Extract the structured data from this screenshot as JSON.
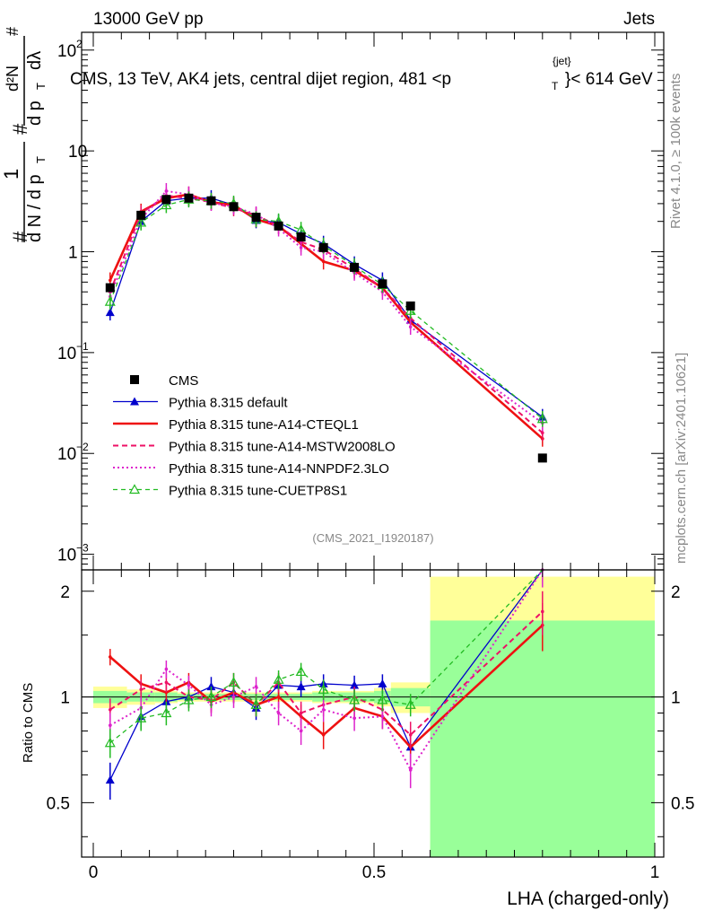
{
  "header": {
    "left": "13000 GeV pp",
    "right": "Jets"
  },
  "plot_title": "CMS, 13 TeV, AK4 jets, central dijet region, 481 <p",
  "plot_title_sup": "{jet}",
  "plot_title_sub": "T",
  "plot_title_tail": "}< 614 GeV",
  "side_labels": {
    "rivet": "Rivet 4.1.0, ≥ 100k events",
    "mcplots": "mcplots.cern.ch [arXiv:2401.10621]"
  },
  "analysis_id": "(CMS_2021_I1920187)",
  "main_ylabel": {
    "hash1": "#",
    "one": "1",
    "dN": "d N / d p",
    "T1": "T",
    "hash2": "#",
    "d2N": "d²N",
    "hash3": "#",
    "dpT": "d p",
    "T2": "T",
    "dlam": "dλ"
  },
  "yticks_main": [
    {
      "v": 0.001,
      "base": "10",
      "exp": "−3"
    },
    {
      "v": 0.01,
      "base": "10",
      "exp": "−2"
    },
    {
      "v": 0.1,
      "base": "10",
      "exp": "−1"
    },
    {
      "v": 1,
      "base": "1",
      "exp": ""
    },
    {
      "v": 10,
      "base": "10",
      "exp": ""
    },
    {
      "v": 100,
      "base": "10",
      "exp": "2"
    }
  ],
  "yticks_ratio": [
    "0.5",
    "1",
    "2"
  ],
  "xticks": [
    "0",
    "0.5",
    "1"
  ],
  "ratio_ylabel": "Ratio to CMS",
  "xlabel": "LHA (charged-only)",
  "legend": [
    {
      "label": "CMS",
      "color": "#000000",
      "style": "data"
    },
    {
      "label": "Pythia 8.315 default",
      "color": "#0000cc",
      "style": "solid-tri"
    },
    {
      "label": "Pythia 8.315 tune-A14-CTEQL1",
      "color": "#ee1111",
      "style": "solid-thick"
    },
    {
      "label": "Pythia 8.315 tune-A14-MSTW2008LO",
      "color": "#ee1166",
      "style": "dashed"
    },
    {
      "label": "Pythia 8.315 tune-A14-NNPDF2.3LO",
      "color": "#dd22cc",
      "style": "dotted"
    },
    {
      "label": "Pythia 8.315 tune-CUETP8S1",
      "color": "#22bb22",
      "style": "dashed-tri"
    }
  ],
  "chart_data": {
    "type": "line",
    "title": "CMS, 13 TeV, AK4 jets, central dijet region, 481 < pT{jet} < 614 GeV",
    "xlabel": "LHA (charged-only)",
    "ylabel": "1/N dN/dλ",
    "xlim": [
      0,
      1
    ],
    "ylim": [
      0.0007,
      150
    ],
    "yscale": "log",
    "ratio_ylim": [
      0.35,
      2.3
    ],
    "ratio_ylabel": "Ratio to CMS",
    "x": [
      0.03,
      0.085,
      0.13,
      0.17,
      0.21,
      0.25,
      0.29,
      0.33,
      0.37,
      0.41,
      0.465,
      0.515,
      0.565,
      0.8
    ],
    "bins": [
      [
        0.0,
        0.06
      ],
      [
        0.06,
        0.11
      ],
      [
        0.11,
        0.15
      ],
      [
        0.15,
        0.19
      ],
      [
        0.19,
        0.23
      ],
      [
        0.23,
        0.27
      ],
      [
        0.27,
        0.31
      ],
      [
        0.31,
        0.35
      ],
      [
        0.35,
        0.39
      ],
      [
        0.39,
        0.43
      ],
      [
        0.43,
        0.5
      ],
      [
        0.5,
        0.53
      ],
      [
        0.53,
        0.6
      ],
      [
        0.6,
        1.0
      ]
    ],
    "data": {
      "name": "CMS",
      "values": [
        0.44,
        2.3,
        3.3,
        3.4,
        3.2,
        2.8,
        2.2,
        1.8,
        1.4,
        1.1,
        0.7,
        0.48,
        0.29,
        0.009
      ],
      "unc_green": [
        0.04,
        0.03,
        0.03,
        0.02,
        0.02,
        0.02,
        0.02,
        0.02,
        0.02,
        0.03,
        0.03,
        0.04,
        0.06,
        0.65
      ],
      "unc_yellow": [
        0.07,
        0.05,
        0.04,
        0.03,
        0.03,
        0.03,
        0.03,
        0.03,
        0.03,
        0.04,
        0.04,
        0.06,
        0.1,
        1.2
      ]
    },
    "series": [
      {
        "name": "Pythia 8.315 default",
        "values": [
          0.25,
          2.0,
          3.2,
          3.4,
          3.4,
          2.9,
          2.05,
          1.95,
          1.5,
          1.2,
          0.75,
          0.52,
          0.21,
          0.023
        ],
        "ratio": [
          0.58,
          0.88,
          0.97,
          1.0,
          1.07,
          1.03,
          0.93,
          1.08,
          1.07,
          1.09,
          1.08,
          1.09,
          0.72,
          2.6
        ]
      },
      {
        "name": "Pythia 8.315 tune-A14-CTEQL1",
        "values": [
          0.52,
          2.5,
          3.4,
          3.7,
          3.1,
          2.9,
          2.1,
          1.8,
          1.2,
          0.8,
          0.65,
          0.44,
          0.2,
          0.014
        ],
        "ratio": [
          1.3,
          1.09,
          1.03,
          1.1,
          0.97,
          1.03,
          0.95,
          1.0,
          0.88,
          0.78,
          0.93,
          0.88,
          0.72,
          1.6
        ]
      },
      {
        "name": "Pythia 8.315 tune-A14-MSTW2008LO",
        "values": [
          0.4,
          2.4,
          3.6,
          3.4,
          3.1,
          2.7,
          2.3,
          1.8,
          1.25,
          1.05,
          0.68,
          0.44,
          0.22,
          0.016
        ],
        "ratio": [
          0.92,
          1.05,
          1.1,
          1.0,
          0.98,
          1.1,
          0.95,
          1.1,
          0.9,
          0.95,
          1.0,
          0.92,
          0.78,
          1.75
        ]
      },
      {
        "name": "Pythia 8.315 tune-A14-NNPDF2.3LO",
        "values": [
          0.36,
          2.1,
          4.0,
          3.7,
          3.05,
          2.8,
          2.35,
          1.7,
          1.1,
          1.0,
          0.62,
          0.4,
          0.18,
          0.02
        ],
        "ratio": [
          0.83,
          0.93,
          1.2,
          1.08,
          0.95,
          1.0,
          1.07,
          0.9,
          0.8,
          0.92,
          0.87,
          0.88,
          0.62,
          2.3
        ]
      },
      {
        "name": "Pythia 8.315 tune-CUETP8S1",
        "values": [
          0.32,
          1.95,
          2.9,
          3.3,
          3.2,
          3.0,
          2.1,
          2.0,
          1.65,
          1.15,
          0.72,
          0.47,
          0.26,
          0.022
        ],
        "ratio": [
          0.74,
          0.87,
          0.9,
          0.98,
          1.0,
          1.1,
          0.95,
          1.12,
          1.18,
          1.05,
          0.98,
          0.98,
          0.95,
          2.45
        ]
      }
    ]
  }
}
